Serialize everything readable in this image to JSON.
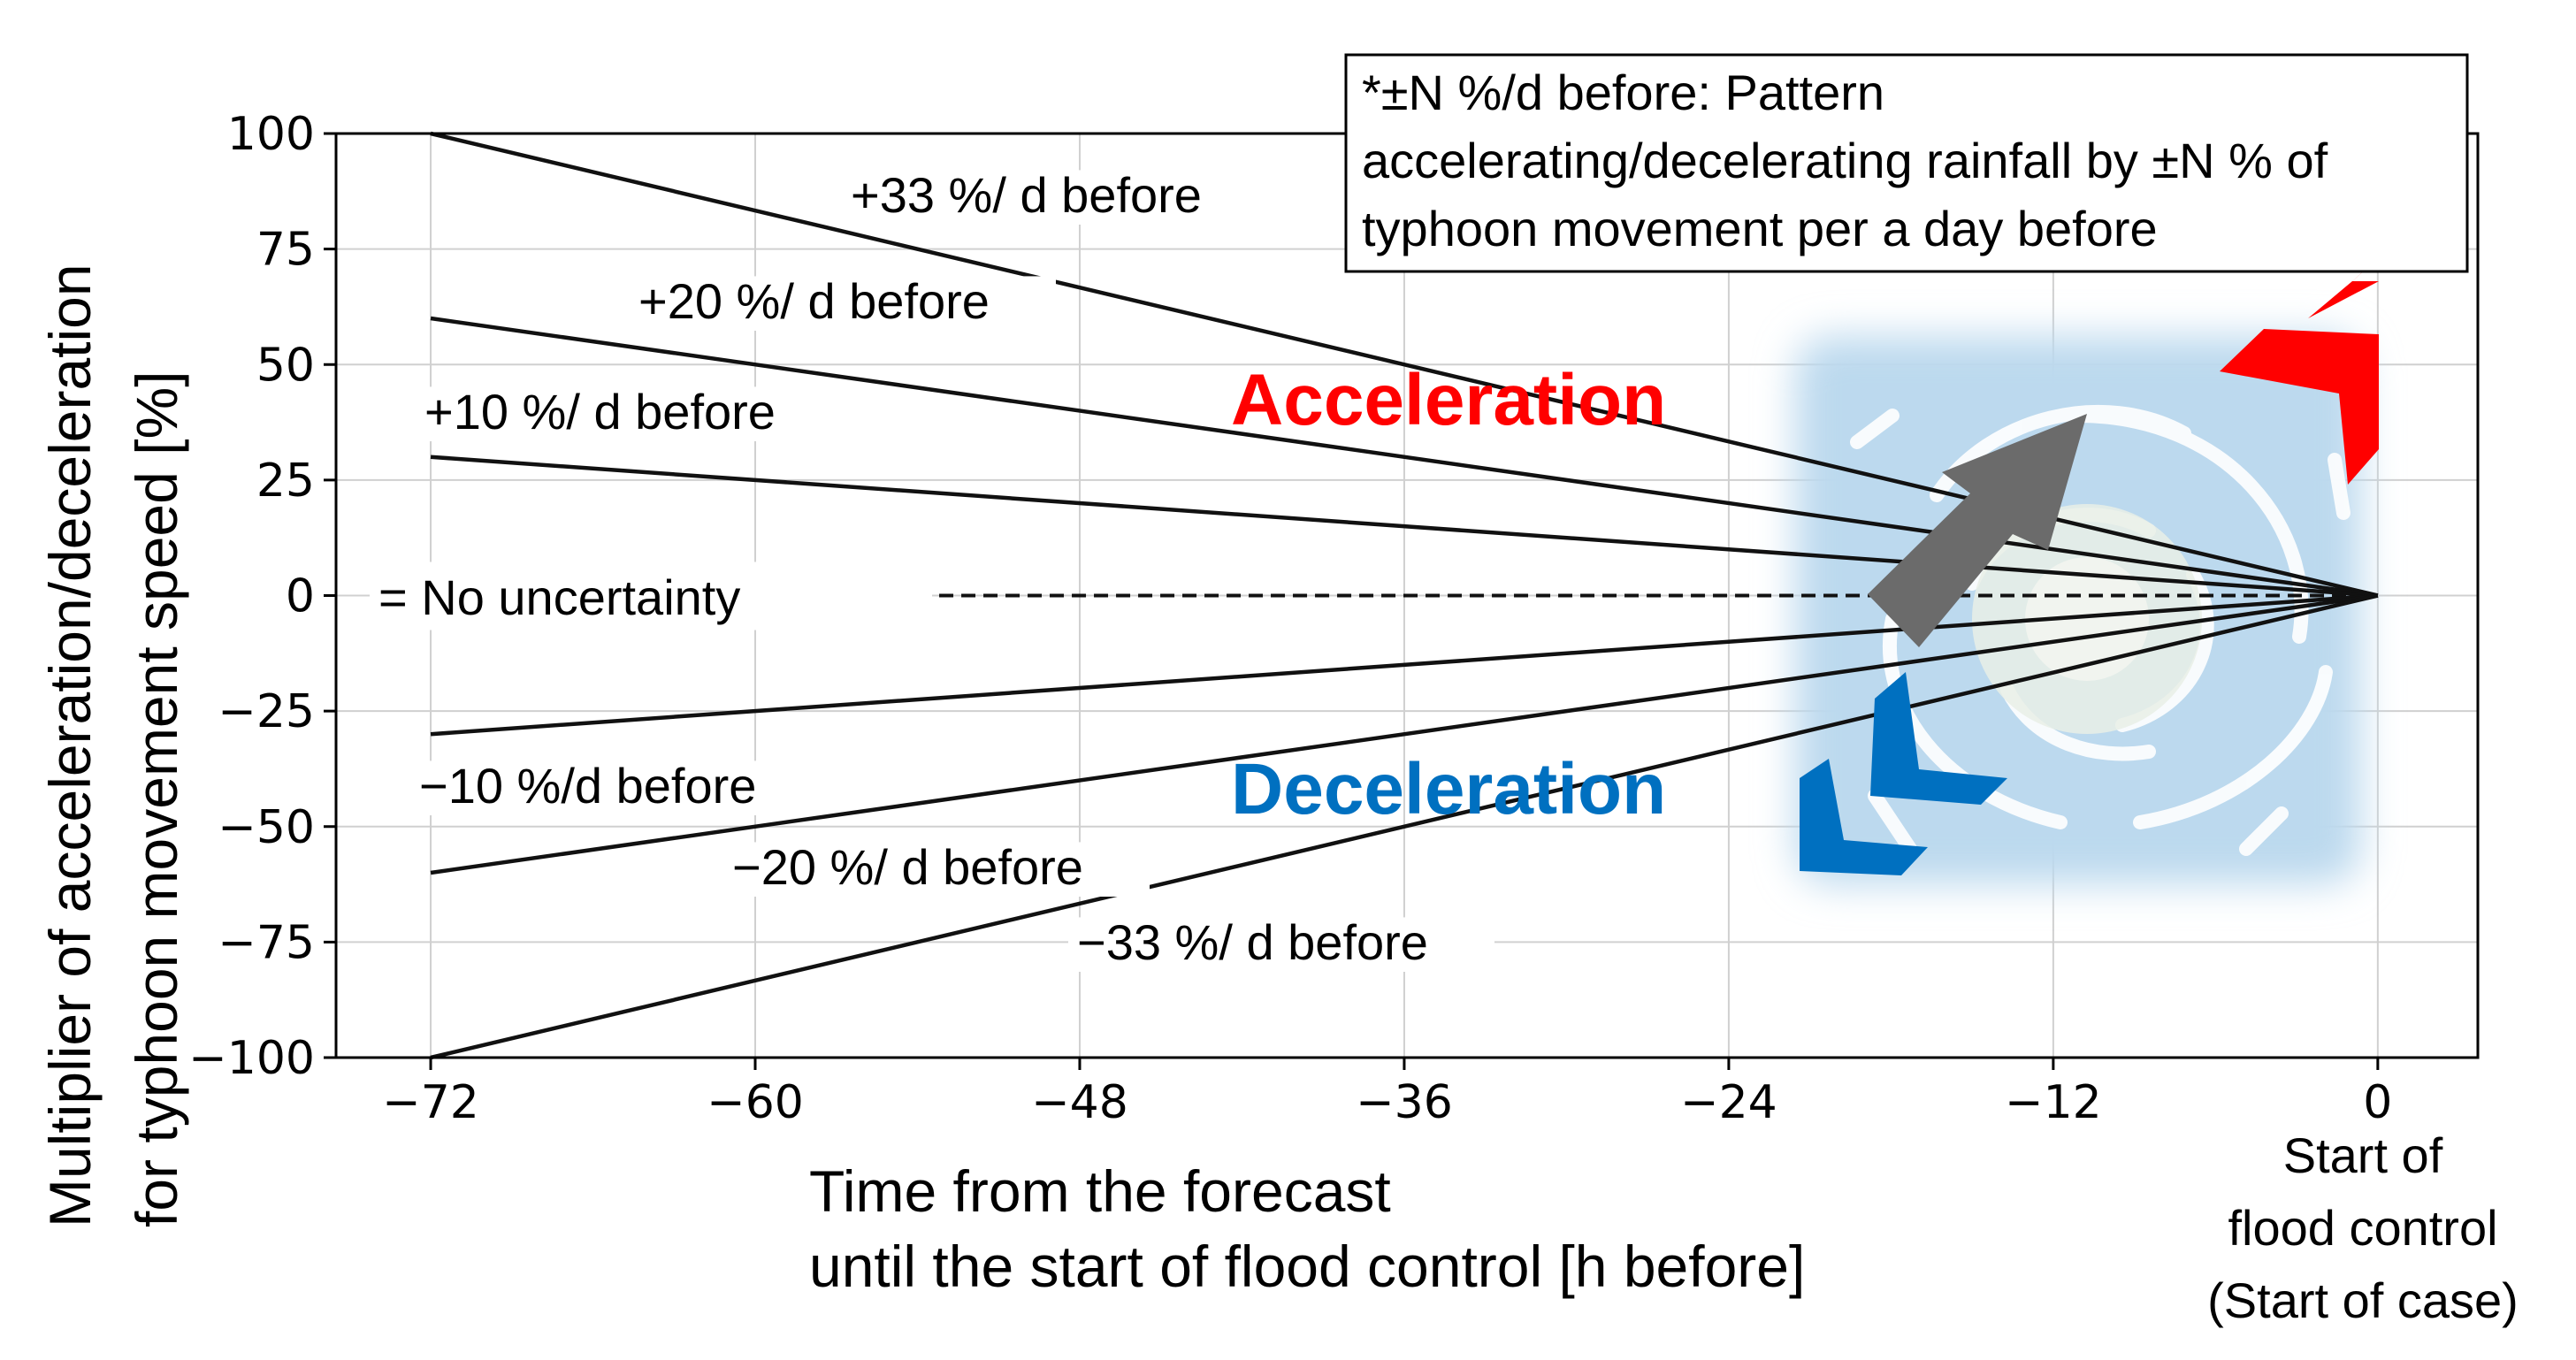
{
  "chart_data": {
    "type": "line",
    "x_ticks": [
      -72,
      -60,
      -48,
      -36,
      -24,
      -12,
      0
    ],
    "y_ticks": [
      100,
      75,
      50,
      25,
      0,
      -25,
      -50,
      -75,
      -100
    ],
    "xlim": [
      -75.5,
      3.7
    ],
    "ylim": [
      -100,
      100
    ],
    "grid": true,
    "xlabel": [
      "Time from the forecast",
      "until the start of flood control [h before]"
    ],
    "ylabel": [
      "Multiplier of acceleration/deceleration",
      "for typhoon movement speed  [%]"
    ],
    "x_end_label": [
      "Start of",
      "flood control",
      "(Start of case)"
    ],
    "series": [
      {
        "name": "+33 %/ d before",
        "x": [
          -72,
          0
        ],
        "y": [
          100,
          0
        ],
        "style": "solid"
      },
      {
        "name": "+20 %/ d before",
        "x": [
          -72,
          0
        ],
        "y": [
          60,
          0
        ],
        "style": "solid"
      },
      {
        "name": "+10 %/ d before",
        "x": [
          -72,
          0
        ],
        "y": [
          30,
          0
        ],
        "style": "solid"
      },
      {
        "name": "= No uncertainty",
        "x": [
          -72,
          0
        ],
        "y": [
          0,
          0
        ],
        "style": "dashed"
      },
      {
        "name": "−10 %/d before",
        "x": [
          -72,
          0
        ],
        "y": [
          -30,
          0
        ],
        "style": "solid"
      },
      {
        "name": "−20 %/ d before",
        "x": [
          -72,
          0
        ],
        "y": [
          -60,
          0
        ],
        "style": "solid"
      },
      {
        "name": "−33 %/ d before",
        "x": [
          -72,
          0
        ],
        "y": [
          -100,
          0
        ],
        "style": "solid"
      }
    ],
    "annotations": {
      "note": [
        "*±N %/d before: Pattern",
        "accelerating/decelerating rainfall by ±N % of",
        "typhoon movement per a day before"
      ],
      "acceleration": "Acceleration",
      "deceleration": "Deceleration"
    },
    "colors": {
      "acceleration": "#ff0000",
      "deceleration": "#0070c0",
      "typhoon_bg": "#bcd9ee",
      "arrow_gray": "#6b6b6b",
      "grid": "#d0d0d0"
    }
  }
}
